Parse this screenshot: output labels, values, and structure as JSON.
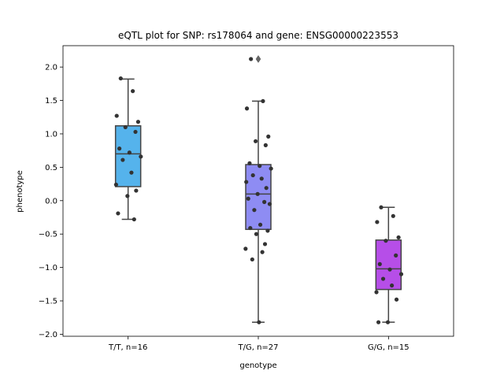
{
  "chart_data": {
    "type": "box",
    "title": "eQTL plot for SNP: rs178064 and gene: ENSG00000223553",
    "xlabel": "genotype",
    "ylabel": "phenotype",
    "ylim": [
      -2.03,
      2.32
    ],
    "yticks": [
      -2.0,
      -1.5,
      -1.0,
      -0.5,
      0.0,
      0.5,
      1.0,
      1.5,
      2.0
    ],
    "ytick_labels": [
      "−2.0",
      "−1.5",
      "−1.0",
      "−0.5",
      "0.0",
      "0.5",
      "1.0",
      "1.5",
      "2.0"
    ],
    "legend": "none",
    "grid": false,
    "categories": [
      "T/T, n=16",
      "T/G, n=27",
      "G/G, n=15"
    ],
    "colors": [
      "#55b3ec",
      "#8e8cf3",
      "#b64ee8"
    ],
    "boxes": [
      {
        "q1": 0.21,
        "median": 0.7,
        "q3": 1.12,
        "whisker_low": -0.28,
        "whisker_high": 1.82,
        "outliers": [],
        "points": [
          1.83,
          1.64,
          1.27,
          1.18,
          1.1,
          1.03,
          0.78,
          0.72,
          0.66,
          0.61,
          0.42,
          0.24,
          0.15,
          0.07,
          -0.19,
          -0.28
        ]
      },
      {
        "q1": -0.43,
        "median": 0.1,
        "q3": 0.54,
        "whisker_low": -1.82,
        "whisker_high": 1.49,
        "outliers": [
          2.12
        ],
        "points": [
          2.12,
          1.49,
          1.38,
          0.96,
          0.89,
          0.83,
          0.56,
          0.52,
          0.48,
          0.38,
          0.33,
          0.28,
          0.19,
          0.1,
          0.03,
          -0.02,
          -0.05,
          -0.14,
          -0.36,
          -0.41,
          -0.45,
          -0.5,
          -0.65,
          -0.72,
          -0.77,
          -0.88,
          -1.82
        ]
      },
      {
        "q1": -1.33,
        "median": -1.02,
        "q3": -0.59,
        "whisker_low": -1.82,
        "whisker_high": -0.1,
        "outliers": [],
        "points": [
          -0.1,
          -0.23,
          -0.32,
          -0.55,
          -0.6,
          -0.82,
          -0.95,
          -1.03,
          -1.1,
          -1.17,
          -1.27,
          -1.37,
          -1.48,
          -1.82,
          -1.82
        ]
      }
    ]
  }
}
